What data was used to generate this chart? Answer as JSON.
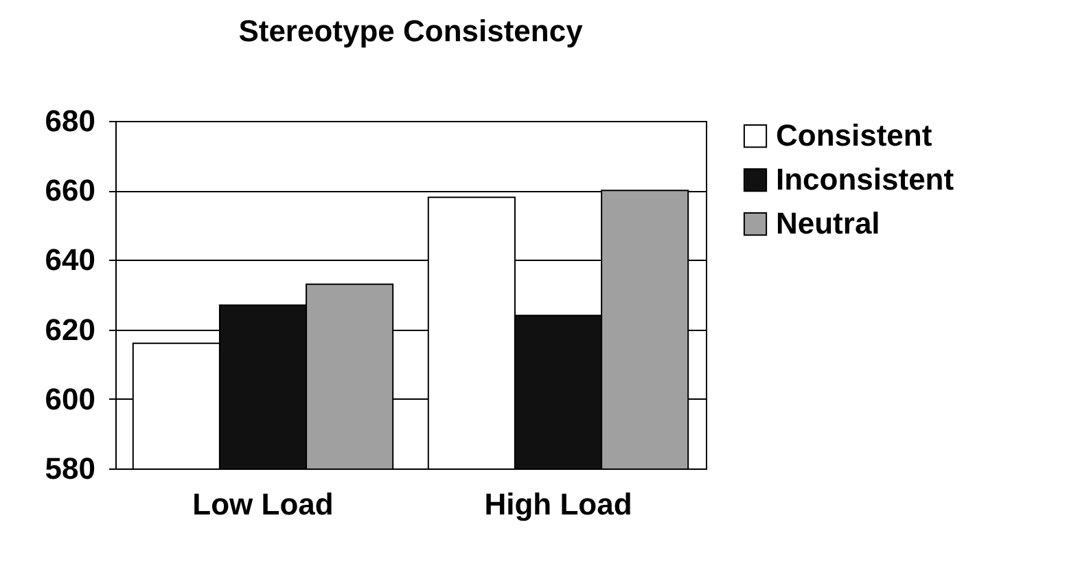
{
  "chart_data": {
    "type": "bar",
    "title": "Stereotype Consistency",
    "categories": [
      "Low Load",
      "High Load"
    ],
    "series": [
      {
        "name": "Consistent",
        "color": "#ffffff",
        "values": [
          616,
          658
        ]
      },
      {
        "name": "Inconsistent",
        "color": "#111111",
        "values": [
          627,
          624
        ]
      },
      {
        "name": "Neutral",
        "color": "#a0a0a0",
        "values": [
          633,
          660
        ]
      }
    ],
    "ylim": [
      580,
      680
    ],
    "yticks": [
      580,
      600,
      620,
      640,
      660,
      680
    ],
    "grid": "y",
    "legend": "right"
  }
}
